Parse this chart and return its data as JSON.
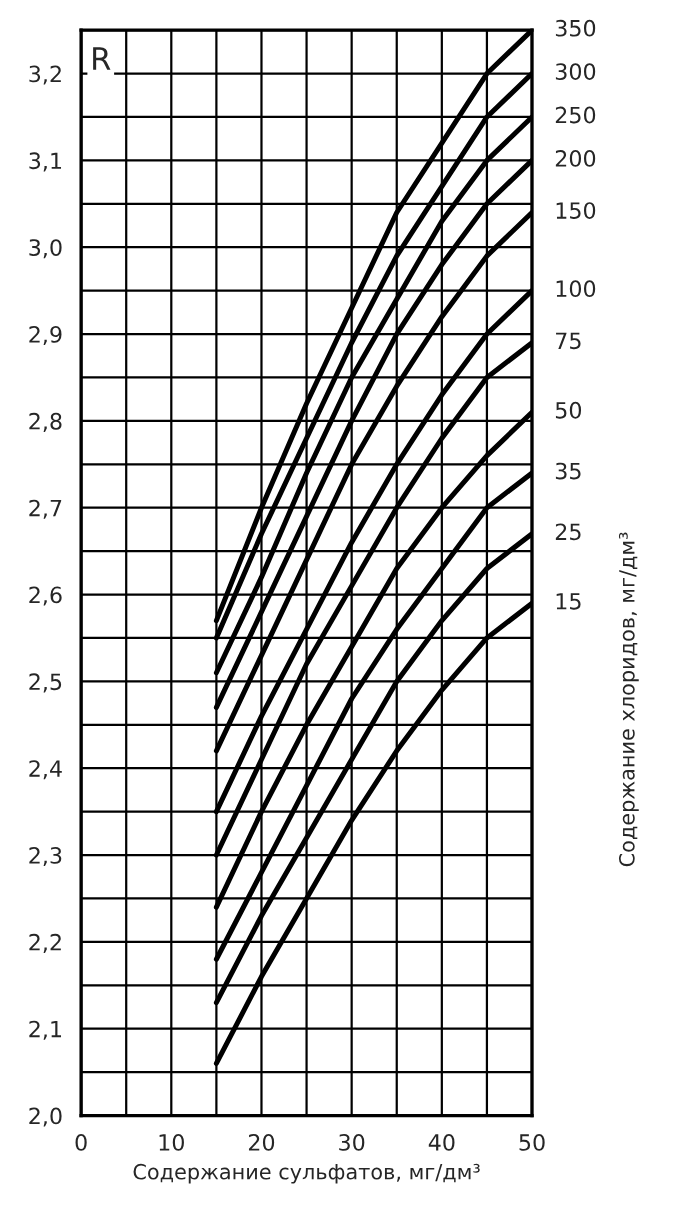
{
  "chart_data": {
    "type": "line",
    "ylabel": "R",
    "xlabel": "Содержание сульфатов, мг/дм³",
    "annotations": [
      "Содержание хлоридов, мг/дм³"
    ],
    "x": [
      15,
      20,
      25,
      30,
      35,
      40,
      45,
      50
    ],
    "series": [
      {
        "name": "15",
        "color": "#000000",
        "values": [
          2.06,
          2.16,
          2.25,
          2.34,
          2.42,
          2.49,
          2.55,
          2.59
        ]
      },
      {
        "name": "25",
        "color": "#000000",
        "values": [
          2.13,
          2.23,
          2.32,
          2.41,
          2.5,
          2.57,
          2.63,
          2.67
        ]
      },
      {
        "name": "35",
        "color": "#000000",
        "values": [
          2.18,
          2.28,
          2.38,
          2.48,
          2.56,
          2.63,
          2.7,
          2.74
        ]
      },
      {
        "name": "50",
        "color": "#000000",
        "values": [
          2.24,
          2.35,
          2.45,
          2.54,
          2.63,
          2.7,
          2.76,
          2.81
        ]
      },
      {
        "name": "75",
        "color": "#000000",
        "values": [
          2.3,
          2.41,
          2.52,
          2.61,
          2.7,
          2.78,
          2.85,
          2.89
        ]
      },
      {
        "name": "100",
        "color": "#000000",
        "values": [
          2.35,
          2.46,
          2.56,
          2.66,
          2.75,
          2.83,
          2.9,
          2.95
        ]
      },
      {
        "name": "150",
        "color": "#000000",
        "values": [
          2.42,
          2.53,
          2.64,
          2.75,
          2.84,
          2.92,
          2.99,
          3.04
        ]
      },
      {
        "name": "200",
        "color": "#000000",
        "values": [
          2.47,
          2.58,
          2.69,
          2.8,
          2.9,
          2.98,
          3.05,
          3.1
        ]
      },
      {
        "name": "250",
        "color": "#000000",
        "values": [
          2.51,
          2.62,
          2.74,
          2.85,
          2.94,
          3.03,
          3.1,
          3.15
        ]
      },
      {
        "name": "300",
        "color": "#000000",
        "values": [
          2.55,
          2.67,
          2.78,
          2.89,
          2.99,
          3.07,
          3.15,
          3.2
        ]
      },
      {
        "name": "350",
        "color": "#000000",
        "values": [
          2.57,
          2.7,
          2.82,
          2.93,
          3.04,
          3.12,
          3.2,
          3.25
        ]
      }
    ],
    "xlim": [
      0,
      50
    ],
    "xticks": [
      0,
      {
        "value": 5,
        "label": null
      },
      10,
      {
        "value": 15,
        "label": null
      },
      20,
      {
        "value": 25,
        "label": null
      },
      30,
      {
        "value": 35,
        "label": null
      },
      40,
      {
        "value": 45,
        "label": null
      },
      50
    ],
    "ylim": [
      2.0,
      3.25
    ],
    "yticks": [
      {
        "value": 2.0,
        "label": "2,0"
      },
      {
        "value": 2.05,
        "label": null
      },
      {
        "value": 2.1,
        "label": "2,1"
      },
      {
        "value": 2.15,
        "label": null
      },
      {
        "value": 2.2,
        "label": "2,2"
      },
      {
        "value": 2.25,
        "label": null
      },
      {
        "value": 2.3,
        "label": "2,3"
      },
      {
        "value": 2.35,
        "label": null
      },
      {
        "value": 2.4,
        "label": "2,4"
      },
      {
        "value": 2.45,
        "label": null
      },
      {
        "value": 2.5,
        "label": "2,5"
      },
      {
        "value": 2.55,
        "label": null
      },
      {
        "value": 2.6,
        "label": "2,6"
      },
      {
        "value": 2.65,
        "label": null
      },
      {
        "value": 2.7,
        "label": "2,7"
      },
      {
        "value": 2.75,
        "label": null
      },
      {
        "value": 2.8,
        "label": "2,8"
      },
      {
        "value": 2.85,
        "label": null
      },
      {
        "value": 2.9,
        "label": "2,9"
      },
      {
        "value": 2.95,
        "label": null
      },
      {
        "value": 3.0,
        "label": "3,0"
      },
      {
        "value": 3.05,
        "label": null
      },
      {
        "value": 3.1,
        "label": "3,1"
      },
      {
        "value": 3.15,
        "label": null
      },
      {
        "value": 3.2,
        "label": "3,2"
      },
      {
        "value": 3.25,
        "label": null
      }
    ],
    "grid": true,
    "line_style": "solid",
    "marker": "none"
  }
}
